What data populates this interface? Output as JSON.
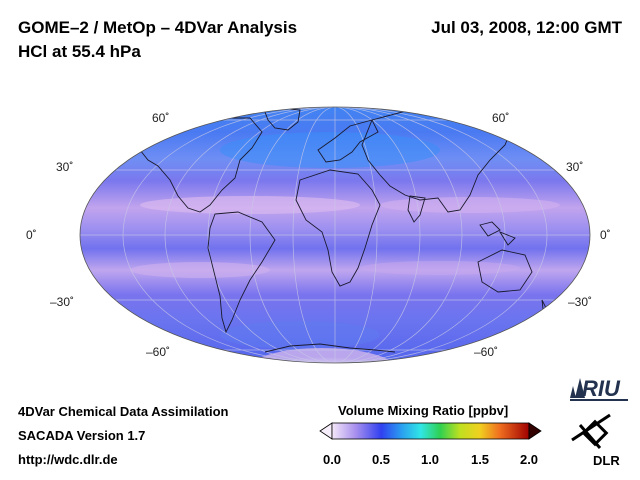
{
  "header": {
    "title": "GOME–2 / MetOp – 4DVar Analysis",
    "subtitle": "HCl at 55.4 hPa",
    "datetime": "Jul 03, 2008, 12:00 GMT"
  },
  "map": {
    "projection": "Mollweide",
    "lat_labels": {
      "n60_left": "60˚",
      "n30_left": "30˚",
      "eq_left": "0˚",
      "s30_left": "–30˚",
      "s60_left": "–60˚",
      "n60_right": "60˚",
      "n30_right": "30˚",
      "eq_right": "0˚",
      "s30_right": "–30˚",
      "s60_right": "–60˚"
    }
  },
  "colorbar": {
    "title": "Volume Mixing Ratio [ppbv]",
    "ticks": [
      "0.0",
      "0.5",
      "1.0",
      "1.5",
      "2.0"
    ],
    "range": [
      0.0,
      2.0
    ]
  },
  "footer": {
    "line1": "4DVar Chemical Data Assimilation",
    "line2": "SACADA Version 1.7",
    "line3": "http://wdc.dlr.de"
  },
  "logos": {
    "riu": "RIU",
    "dlr": "DLR"
  },
  "colors": {
    "ocean_base": "#6f72f0",
    "band_light": "#cdaaf0",
    "high_lat": "#3d8cf5",
    "antarctic": "#f4eef8"
  }
}
